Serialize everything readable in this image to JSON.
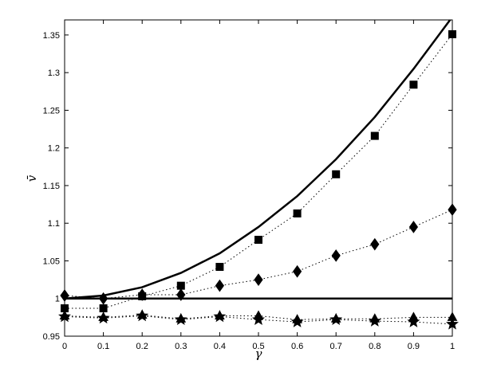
{
  "chart_data": {
    "type": "line",
    "title": "",
    "xlabel": "γ",
    "ylabel": "v̄",
    "xlim": [
      0,
      1
    ],
    "ylim": [
      0.95,
      1.37
    ],
    "grid": false,
    "legend": "none",
    "x": [
      0,
      0.1,
      0.2,
      0.3,
      0.4,
      0.5,
      0.6,
      0.7,
      0.8,
      0.9,
      1
    ],
    "xticks": [
      "0",
      "0.1",
      "0.2",
      "0.3",
      "0.4",
      "0.5",
      "0.6",
      "0.7",
      "0.8",
      "0.9",
      "1"
    ],
    "yticks": [
      "0.95",
      "1",
      "1.05",
      "1.1",
      "1.15",
      "1.2",
      "1.25",
      "1.3",
      "1.35"
    ],
    "series": [
      {
        "style": "solid",
        "marker": "none",
        "color": "#000000",
        "values": [
          1.0,
          1.004,
          1.015,
          1.034,
          1.06,
          1.095,
          1.136,
          1.185,
          1.241,
          1.305,
          1.374
        ]
      },
      {
        "style": "solid",
        "marker": "none",
        "color": "#000000",
        "values": [
          1.0,
          1.0,
          1.0,
          1.0,
          1.0,
          1.0,
          1.0,
          1.0,
          1.0,
          1.0,
          1.0
        ]
      },
      {
        "style": "dotted",
        "marker": "square",
        "color": "#000000",
        "values": [
          0.987,
          0.987,
          1.003,
          1.017,
          1.042,
          1.078,
          1.113,
          1.165,
          1.216,
          1.284,
          1.351
        ]
      },
      {
        "style": "dotted",
        "marker": "diamond",
        "color": "#000000",
        "values": [
          1.004,
          1.0,
          1.005,
          1.005,
          1.017,
          1.025,
          1.036,
          1.057,
          1.072,
          1.095,
          1.118
        ]
      },
      {
        "style": "dotted",
        "marker": "triangle",
        "color": "#000000",
        "values": [
          0.977,
          0.975,
          0.978,
          0.973,
          0.977,
          0.977,
          0.972,
          0.973,
          0.973,
          0.975,
          0.975
        ]
      },
      {
        "style": "dotted",
        "marker": "star",
        "color": "#000000",
        "values": [
          0.976,
          0.974,
          0.977,
          0.972,
          0.976,
          0.972,
          0.969,
          0.972,
          0.97,
          0.969,
          0.966
        ]
      }
    ]
  }
}
